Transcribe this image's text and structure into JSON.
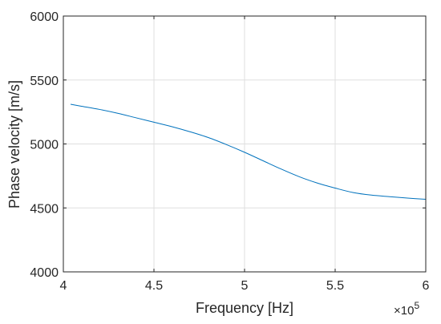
{
  "chart_data": {
    "type": "line",
    "title": "",
    "xlabel": "Frequency [Hz]",
    "ylabel": "Phase velocity [m/s]",
    "x_multiplier": {
      "base": "×10",
      "exponent": "5"
    },
    "xlim": [
      4,
      6
    ],
    "ylim": [
      4000,
      6000
    ],
    "x_ticks": [
      4,
      4.5,
      5,
      5.5,
      6
    ],
    "x_tick_labels": [
      "4",
      "4.5",
      "5",
      "5.5",
      "6"
    ],
    "y_ticks": [
      4000,
      4500,
      5000,
      5500,
      6000
    ],
    "y_tick_labels": [
      "4000",
      "4500",
      "5000",
      "5500",
      "6000"
    ],
    "grid": true,
    "line_color": "#0072bd",
    "series": [
      {
        "x": [
          4.04,
          4.1,
          4.2,
          4.3,
          4.4,
          4.5,
          4.6,
          4.7,
          4.8,
          4.9,
          5.0,
          5.1,
          5.2,
          5.3,
          5.4,
          5.5,
          5.6,
          5.7,
          5.8,
          5.9,
          6.0
        ],
        "values": [
          5310,
          5295,
          5270,
          5240,
          5205,
          5170,
          5135,
          5095,
          5050,
          4995,
          4935,
          4870,
          4805,
          4745,
          4695,
          4655,
          4620,
          4600,
          4588,
          4577,
          4567
        ]
      }
    ]
  }
}
